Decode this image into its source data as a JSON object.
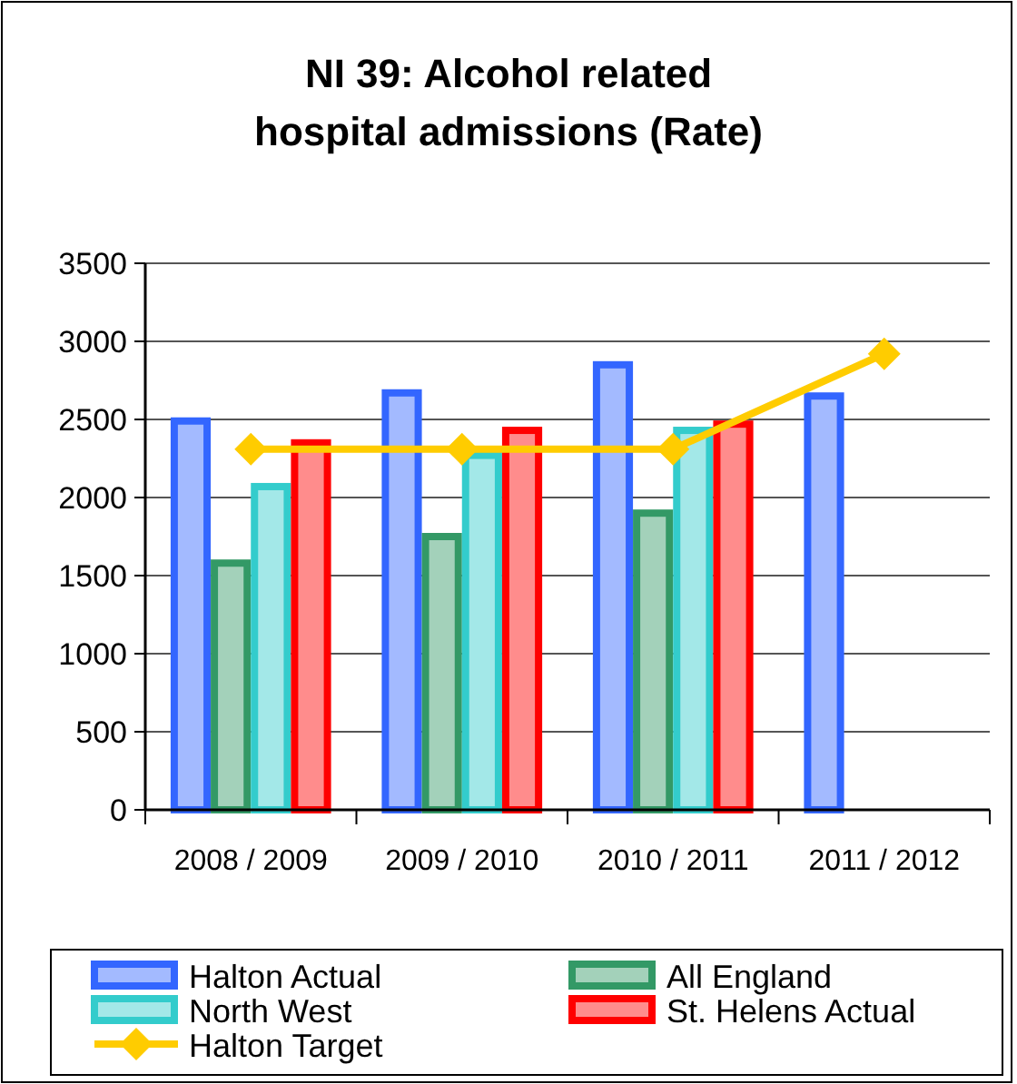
{
  "chart_data": {
    "type": "bar",
    "title": "NI 39: Alcohol related hospital admissions (Rate)",
    "categories": [
      "2008 / 2009",
      "2009 / 2010",
      "2010 / 2011",
      "2011 / 2012"
    ],
    "series": [
      {
        "name": "Halton Actual",
        "color": "#3366ff",
        "values": [
          2490,
          2670,
          2850,
          2650
        ]
      },
      {
        "name": "All England",
        "color": "#339966",
        "values": [
          1580,
          1750,
          1900,
          null
        ]
      },
      {
        "name": "North West",
        "color": "#33cccc",
        "values": [
          2070,
          2270,
          2430,
          null
        ]
      },
      {
        "name": "St. Helens Actual",
        "color": "#ff0000",
        "values": [
          2350,
          2430,
          2470,
          null
        ]
      },
      {
        "name": "Halton Target",
        "type": "line",
        "color": "#ffcc00",
        "marker": "diamond",
        "values": [
          2310,
          2310,
          2310,
          2920
        ]
      }
    ],
    "ylim": [
      0,
      3500
    ],
    "yticks": [
      0,
      500,
      1000,
      1500,
      2000,
      2500,
      3000,
      3500
    ],
    "grid": "y",
    "legend": "bottom"
  }
}
